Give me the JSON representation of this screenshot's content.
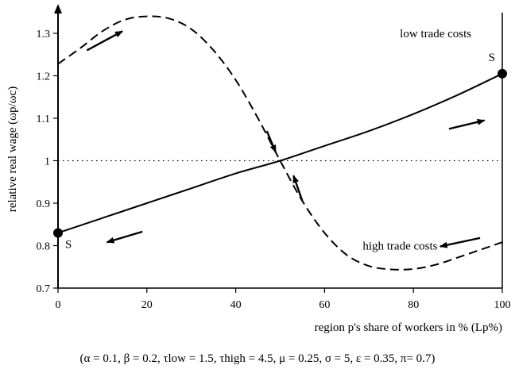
{
  "chart_data": {
    "type": "line",
    "xlabel": "region p's share of workers in % (Lp%)",
    "ylabel": "relative real wage (ωp/ωc)",
    "xlim": [
      0,
      100
    ],
    "ylim": [
      0.7,
      1.35
    ],
    "x_ticks": [
      "0",
      "20",
      "40",
      "60",
      "80",
      "100"
    ],
    "y_ticks": [
      "0.7",
      "0.8",
      "0.9",
      "1",
      "1.1",
      "1.2",
      "1.3"
    ],
    "reference_line": {
      "y": 1,
      "style": "dotted"
    },
    "series": [
      {
        "name": "low trade costs",
        "style": "solid",
        "x": [
          0,
          10,
          20,
          30,
          40,
          50,
          60,
          70,
          80,
          90,
          100
        ],
        "y": [
          0.83,
          0.865,
          0.9,
          0.935,
          0.97,
          1.0,
          1.035,
          1.07,
          1.11,
          1.155,
          1.205
        ]
      },
      {
        "name": "high trade costs",
        "style": "dashed",
        "x": [
          0,
          5,
          10,
          15,
          20,
          25,
          30,
          35,
          40,
          45,
          50,
          55,
          60,
          65,
          70,
          75,
          80,
          85,
          90,
          95,
          100
        ],
        "y": [
          1.228,
          1.265,
          1.305,
          1.332,
          1.34,
          1.335,
          1.31,
          1.26,
          1.19,
          1.1,
          1.0,
          0.905,
          0.83,
          0.778,
          0.752,
          0.744,
          0.745,
          0.755,
          0.772,
          0.79,
          0.808
        ]
      }
    ],
    "points": [
      {
        "x": 0,
        "y": 0.83,
        "label": "S"
      },
      {
        "x": 100,
        "y": 1.205,
        "label": "S"
      }
    ],
    "arrows": [
      {
        "from": [
          6.5,
          1.26
        ],
        "to": [
          14.5,
          1.305
        ]
      },
      {
        "from": [
          88,
          1.075
        ],
        "to": [
          96,
          1.095
        ]
      },
      {
        "from": [
          19,
          0.833
        ],
        "to": [
          11,
          0.808
        ]
      },
      {
        "from": [
          47,
          1.07
        ],
        "to": [
          49,
          1.02
        ]
      },
      {
        "from": [
          55,
          0.905
        ],
        "to": [
          53,
          0.965
        ]
      },
      {
        "from": [
          95,
          0.818
        ],
        "to": [
          86,
          0.798
        ]
      }
    ],
    "annotations": [
      {
        "text": "low trade costs",
        "x": 85,
        "y": 1.3
      },
      {
        "text": "high trade costs",
        "x": 77,
        "y": 0.8
      }
    ],
    "grid": false,
    "legend": "none"
  },
  "footnote": "(α = 0.1, β = 0.2, τlow = 1.5, τhigh = 4.5, μ = 0.25, σ = 5, ε = 0.35, π= 0.7)"
}
